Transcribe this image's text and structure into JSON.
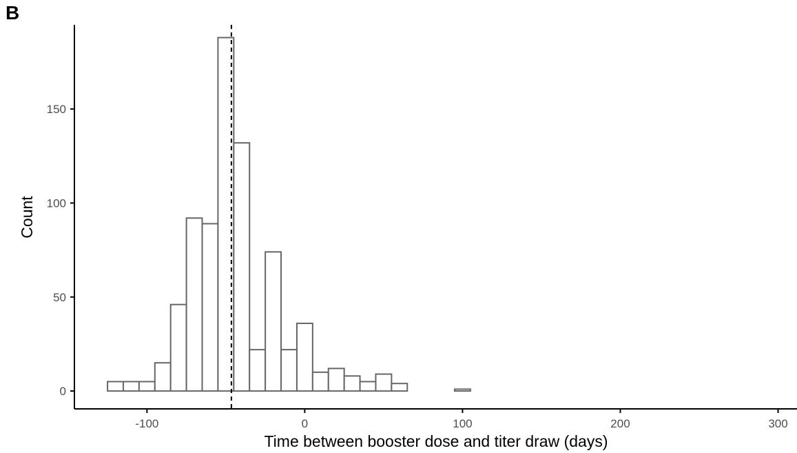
{
  "panel_tag": "B",
  "chart_data": {
    "type": "bar",
    "subtype": "histogram",
    "xlabel": "Time between booster dose and titer draw (days)",
    "ylabel": "Count",
    "xlim": [
      -146,
      312
    ],
    "ylim": [
      -9.5,
      197
    ],
    "x_ticks": [
      {
        "value": -100,
        "label": "-100"
      },
      {
        "value": 0,
        "label": "0"
      },
      {
        "value": 100,
        "label": "100"
      },
      {
        "value": 200,
        "label": "200"
      },
      {
        "value": 300,
        "label": "300"
      }
    ],
    "y_ticks": [
      {
        "value": 0,
        "label": "0"
      },
      {
        "value": 50,
        "label": "50"
      },
      {
        "value": 100,
        "label": "100"
      },
      {
        "value": 150,
        "label": "150"
      }
    ],
    "bin_start": -125,
    "bin_width": 10,
    "bin_counts": [
      5,
      5,
      5,
      15,
      46,
      92,
      89,
      188,
      132,
      22,
      74,
      22,
      36,
      10,
      12,
      8,
      5,
      9,
      4,
      0,
      0,
      0,
      1,
      0,
      0,
      0,
      0,
      0,
      0,
      0,
      0,
      0,
      0,
      0,
      0,
      0,
      0,
      0,
      0,
      0,
      0,
      0,
      0
    ],
    "reference_line_x": -46.5,
    "grid": false,
    "legend": "none",
    "colors": {
      "bar_fill": "#ffffff",
      "bar_stroke": "#666666",
      "axis": "#000000",
      "reference_line": "#000000"
    }
  }
}
